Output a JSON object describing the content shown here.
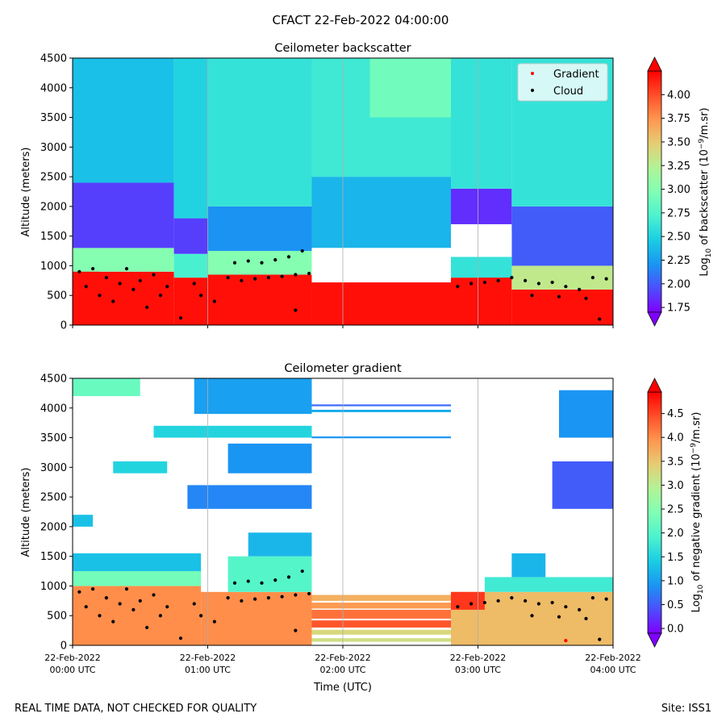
{
  "figure": {
    "suptitle": "CFACT 22-Feb-2022 04:00:00",
    "footer_left": "REAL TIME DATA, NOT CHECKED FOR QUALITY",
    "footer_right": "Site: ISS1",
    "xlabel": "Time (UTC)"
  },
  "colors": {
    "rainbow": [
      "#8000ff",
      "#4b4ffc",
      "#1996f3",
      "#1acee3",
      "#4df3ce",
      "#80ffb4",
      "#b2f396",
      "#e6cd73",
      "#ff964f",
      "#ff4f28",
      "#ff0000"
    ],
    "grid": "#b0b0b0",
    "gradient_marker": "#ff0000",
    "cloud_marker": "#000000"
  },
  "chart_data": [
    {
      "type": "heatmap",
      "title": "Ceilometer backscatter",
      "ylabel": "Altitude (meters)",
      "ylim": [
        0,
        4500
      ],
      "yticks": [
        0,
        500,
        1000,
        1500,
        2000,
        2500,
        3000,
        3500,
        4000,
        4500
      ],
      "xlim_hours": [
        0,
        4
      ],
      "xtick_hours": [
        0,
        1,
        2,
        3,
        4
      ],
      "xtick_labels": [
        [
          "22-Feb-2022",
          "00:00 UTC"
        ],
        [
          "22-Feb-2022",
          "01:00 UTC"
        ],
        [
          "22-Feb-2022",
          "02:00 UTC"
        ],
        [
          "22-Feb-2022",
          "03:00 UTC"
        ],
        [
          "22-Feb-2022",
          "04:00 UTC"
        ]
      ],
      "show_xtick_labels": false,
      "vertical_grid": true,
      "colorbar": {
        "label_prefix": "Log",
        "label_sub": "10",
        "label_mid": " of backscatter (10",
        "label_sup": "−9",
        "label_suffix": "/m.sr)",
        "range": [
          1.7,
          4.25
        ],
        "ticks": [
          "1.75",
          "2.00",
          "2.25",
          "2.50",
          "2.75",
          "3.00",
          "3.25",
          "3.50",
          "3.75",
          "4.00"
        ],
        "extend": "both"
      },
      "legend": {
        "location": "upper right",
        "entries": [
          "Gradient",
          "Cloud"
        ]
      },
      "regions": [
        {
          "t": [
            0.0,
            0.2
          ],
          "z": [
            0,
            1100
          ],
          "value": 4.2
        },
        {
          "t": [
            0.2,
            0.75
          ],
          "z": [
            0,
            900
          ],
          "value": 4.2
        },
        {
          "t": [
            0.0,
            0.75
          ],
          "z": [
            900,
            1300
          ],
          "value": 3.0
        },
        {
          "t": [
            0.0,
            0.75
          ],
          "z": [
            1300,
            2400
          ],
          "value": 1.9
        },
        {
          "t": [
            0.0,
            0.75
          ],
          "z": [
            2400,
            4500
          ],
          "value": 2.4
        },
        {
          "t": [
            0.75,
            1.0
          ],
          "z": [
            0,
            800
          ],
          "value": 4.2
        },
        {
          "t": [
            0.75,
            1.0
          ],
          "z": [
            800,
            1200
          ],
          "value": 2.7
        },
        {
          "t": [
            0.75,
            1.0
          ],
          "z": [
            1200,
            1800
          ],
          "value": 1.9
        },
        {
          "t": [
            0.75,
            1.0
          ],
          "z": [
            1800,
            4500
          ],
          "value": 2.5
        },
        {
          "t": [
            1.0,
            1.77
          ],
          "z": [
            0,
            850
          ],
          "value": 4.2
        },
        {
          "t": [
            1.0,
            1.77
          ],
          "z": [
            850,
            1250
          ],
          "value": 3.0
        },
        {
          "t": [
            1.0,
            1.77
          ],
          "z": [
            1250,
            2000
          ],
          "value": 2.2
        },
        {
          "t": [
            1.0,
            1.77
          ],
          "z": [
            2000,
            4500
          ],
          "value": 2.6
        },
        {
          "t": [
            1.77,
            2.8
          ],
          "z": [
            0,
            720
          ],
          "value": 4.2
        },
        {
          "t": [
            1.77,
            2.8
          ],
          "z": [
            1300,
            2500
          ],
          "value": 2.35
        },
        {
          "t": [
            1.77,
            2.8
          ],
          "z": [
            2500,
            4500
          ],
          "value": 2.65
        },
        {
          "t": [
            2.2,
            2.8
          ],
          "z": [
            3500,
            4500
          ],
          "value": 2.9
        },
        {
          "t": [
            2.8,
            3.0
          ],
          "z": [
            0,
            800
          ],
          "value": 4.2
        },
        {
          "t": [
            2.8,
            3.25
          ],
          "z": [
            1700,
            2300
          ],
          "value": 1.85
        },
        {
          "t": [
            3.0,
            3.25
          ],
          "z": [
            0,
            850
          ],
          "value": 4.2
        },
        {
          "t": [
            2.8,
            3.25
          ],
          "z": [
            2300,
            4500
          ],
          "value": 2.6
        },
        {
          "t": [
            3.25,
            4.0
          ],
          "z": [
            0,
            600
          ],
          "value": 4.2
        },
        {
          "t": [
            3.25,
            4.0
          ],
          "z": [
            600,
            1000
          ],
          "value": 3.3
        },
        {
          "t": [
            3.25,
            4.0
          ],
          "z": [
            1000,
            2000
          ],
          "value": 2.0
        },
        {
          "t": [
            3.25,
            4.0
          ],
          "z": [
            2000,
            4500
          ],
          "value": 2.6
        },
        {
          "t": [
            2.8,
            3.25
          ],
          "z": [
            800,
            1150
          ],
          "value": 2.6
        }
      ],
      "blank_regions": [
        {
          "t": [
            1.77,
            2.8
          ],
          "z": [
            720,
            1300
          ]
        },
        {
          "t": [
            2.8,
            3.25
          ],
          "z": [
            1150,
            1600
          ]
        }
      ],
      "cloud_points": [
        {
          "t": 0.05,
          "z": 900
        },
        {
          "t": 0.1,
          "z": 650
        },
        {
          "t": 0.15,
          "z": 950
        },
        {
          "t": 0.2,
          "z": 500
        },
        {
          "t": 0.25,
          "z": 800
        },
        {
          "t": 0.3,
          "z": 400
        },
        {
          "t": 0.35,
          "z": 700
        },
        {
          "t": 0.4,
          "z": 950
        },
        {
          "t": 0.45,
          "z": 600
        },
        {
          "t": 0.5,
          "z": 750
        },
        {
          "t": 0.55,
          "z": 300
        },
        {
          "t": 0.6,
          "z": 850
        },
        {
          "t": 0.65,
          "z": 500
        },
        {
          "t": 0.7,
          "z": 650
        },
        {
          "t": 0.8,
          "z": 120
        },
        {
          "t": 0.9,
          "z": 700
        },
        {
          "t": 0.95,
          "z": 500
        },
        {
          "t": 1.05,
          "z": 400
        },
        {
          "t": 1.15,
          "z": 800
        },
        {
          "t": 1.2,
          "z": 1050
        },
        {
          "t": 1.3,
          "z": 1080
        },
        {
          "t": 1.4,
          "z": 1050
        },
        {
          "t": 1.5,
          "z": 1100
        },
        {
          "t": 1.6,
          "z": 1150
        },
        {
          "t": 1.7,
          "z": 1250
        },
        {
          "t": 1.25,
          "z": 750
        },
        {
          "t": 1.35,
          "z": 780
        },
        {
          "t": 1.45,
          "z": 800
        },
        {
          "t": 1.55,
          "z": 820
        },
        {
          "t": 1.65,
          "z": 850
        },
        {
          "t": 1.75,
          "z": 870
        },
        {
          "t": 1.65,
          "z": 250
        },
        {
          "t": 2.85,
          "z": 650
        },
        {
          "t": 2.95,
          "z": 700
        },
        {
          "t": 3.05,
          "z": 720
        },
        {
          "t": 3.15,
          "z": 750
        },
        {
          "t": 3.25,
          "z": 800
        },
        {
          "t": 3.35,
          "z": 750
        },
        {
          "t": 3.45,
          "z": 700
        },
        {
          "t": 3.55,
          "z": 720
        },
        {
          "t": 3.65,
          "z": 650
        },
        {
          "t": 3.75,
          "z": 600
        },
        {
          "t": 3.85,
          "z": 800
        },
        {
          "t": 3.95,
          "z": 780
        },
        {
          "t": 3.4,
          "z": 500
        },
        {
          "t": 3.6,
          "z": 480
        },
        {
          "t": 3.8,
          "z": 450
        },
        {
          "t": 3.9,
          "z": 100
        }
      ]
    },
    {
      "type": "heatmap",
      "title": "Ceilometer gradient",
      "ylabel": "Altitude (meters)",
      "ylim": [
        0,
        4500
      ],
      "yticks": [
        0,
        500,
        1000,
        1500,
        2000,
        2500,
        3000,
        3500,
        4000,
        4500
      ],
      "xlim_hours": [
        0,
        4
      ],
      "xtick_hours": [
        0,
        1,
        2,
        3,
        4
      ],
      "xtick_labels": [
        [
          "22-Feb-2022",
          "00:00 UTC"
        ],
        [
          "22-Feb-2022",
          "01:00 UTC"
        ],
        [
          "22-Feb-2022",
          "02:00 UTC"
        ],
        [
          "22-Feb-2022",
          "03:00 UTC"
        ],
        [
          "22-Feb-2022",
          "04:00 UTC"
        ]
      ],
      "show_xtick_labels": true,
      "vertical_grid": true,
      "colorbar": {
        "label_prefix": "Log",
        "label_sub": "10",
        "label_mid": " of negative gradient (10",
        "label_sup": "−9",
        "label_suffix": "/m.sr)",
        "range": [
          -0.1,
          4.95
        ],
        "ticks": [
          "0.0",
          "0.5",
          "1.0",
          "1.5",
          "2.0",
          "2.5",
          "3.0",
          "3.5",
          "4.0",
          "4.5"
        ],
        "extend": "both"
      },
      "regions": [
        {
          "t": [
            0.0,
            0.95
          ],
          "z": [
            0,
            1000
          ],
          "value": 4.0
        },
        {
          "t": [
            0.0,
            0.95
          ],
          "z": [
            1000,
            1250
          ],
          "value": 2.3
        },
        {
          "t": [
            0.0,
            0.95
          ],
          "z": [
            1250,
            1550
          ],
          "value": 1.3
        },
        {
          "t": [
            0.95,
            1.77
          ],
          "z": [
            0,
            900
          ],
          "value": 4.0
        },
        {
          "t": [
            1.15,
            1.77
          ],
          "z": [
            900,
            1500
          ],
          "value": 2.0
        },
        {
          "t": [
            1.3,
            1.77
          ],
          "z": [
            1500,
            1900
          ],
          "value": 1.2
        },
        {
          "t": [
            0.85,
            1.77
          ],
          "z": [
            2300,
            2700
          ],
          "value": 0.8
        },
        {
          "t": [
            1.15,
            1.77
          ],
          "z": [
            2900,
            3400
          ],
          "value": 0.9
        },
        {
          "t": [
            0.6,
            1.77
          ],
          "z": [
            3500,
            3700
          ],
          "value": 1.5
        },
        {
          "t": [
            0.9,
            1.77
          ],
          "z": [
            3900,
            4500
          ],
          "value": 1.0
        },
        {
          "t": [
            0.0,
            0.5
          ],
          "z": [
            4200,
            4500
          ],
          "value": 2.2
        },
        {
          "t": [
            0.0,
            0.15
          ],
          "z": [
            2000,
            2200
          ],
          "value": 1.3
        },
        {
          "t": [
            0.3,
            0.7
          ],
          "z": [
            2900,
            3100
          ],
          "value": 1.5
        },
        {
          "t": [
            2.8,
            4.0
          ],
          "z": [
            0,
            900
          ],
          "value": 3.6
        },
        {
          "t": [
            2.8,
            3.05
          ],
          "z": [
            600,
            900
          ],
          "value": 4.6
        },
        {
          "t": [
            3.05,
            4.0
          ],
          "z": [
            900,
            1150
          ],
          "value": 1.8
        },
        {
          "t": [
            3.25,
            3.5
          ],
          "z": [
            1150,
            1550
          ],
          "value": 1.2
        },
        {
          "t": [
            3.55,
            4.0
          ],
          "z": [
            2300,
            3100
          ],
          "value": 0.5
        },
        {
          "t": [
            3.6,
            4.0
          ],
          "z": [
            3500,
            4300
          ],
          "value": 0.9
        }
      ],
      "stripes": [
        {
          "t": [
            1.77,
            2.8
          ],
          "z": [
            750,
            850
          ],
          "value": 3.7
        },
        {
          "t": [
            1.77,
            2.8
          ],
          "z": [
            450,
            600
          ],
          "value": 4.2
        },
        {
          "t": [
            1.77,
            2.8
          ],
          "z": [
            300,
            420
          ],
          "value": 4.4
        },
        {
          "t": [
            1.77,
            2.8
          ],
          "z": [
            180,
            260
          ],
          "value": 3.3
        },
        {
          "t": [
            1.77,
            2.8
          ],
          "z": [
            60,
            120
          ],
          "value": 3.2
        },
        {
          "t": [
            1.77,
            2.8
          ],
          "z": [
            620,
            720
          ],
          "value": 3.9
        },
        {
          "t": [
            1.77,
            2.8
          ],
          "z": [
            3930,
            3970
          ],
          "value": 1.1
        },
        {
          "t": [
            1.77,
            2.8
          ],
          "z": [
            4030,
            4060
          ],
          "value": 0.6
        },
        {
          "t": [
            1.77,
            2.8
          ],
          "z": [
            3490,
            3520
          ],
          "value": 0.9
        }
      ],
      "cloud_points": [
        {
          "t": 0.05,
          "z": 900
        },
        {
          "t": 0.1,
          "z": 650
        },
        {
          "t": 0.15,
          "z": 950
        },
        {
          "t": 0.2,
          "z": 500
        },
        {
          "t": 0.25,
          "z": 800
        },
        {
          "t": 0.3,
          "z": 400
        },
        {
          "t": 0.35,
          "z": 700
        },
        {
          "t": 0.4,
          "z": 950
        },
        {
          "t": 0.45,
          "z": 600
        },
        {
          "t": 0.5,
          "z": 750
        },
        {
          "t": 0.55,
          "z": 300
        },
        {
          "t": 0.6,
          "z": 850
        },
        {
          "t": 0.65,
          "z": 500
        },
        {
          "t": 0.7,
          "z": 650
        },
        {
          "t": 0.8,
          "z": 120
        },
        {
          "t": 0.9,
          "z": 700
        },
        {
          "t": 0.95,
          "z": 500
        },
        {
          "t": 1.05,
          "z": 400
        },
        {
          "t": 1.15,
          "z": 800
        },
        {
          "t": 1.2,
          "z": 1050
        },
        {
          "t": 1.3,
          "z": 1080
        },
        {
          "t": 1.4,
          "z": 1050
        },
        {
          "t": 1.5,
          "z": 1100
        },
        {
          "t": 1.6,
          "z": 1150
        },
        {
          "t": 1.7,
          "z": 1250
        },
        {
          "t": 1.25,
          "z": 750
        },
        {
          "t": 1.35,
          "z": 780
        },
        {
          "t": 1.45,
          "z": 800
        },
        {
          "t": 1.55,
          "z": 820
        },
        {
          "t": 1.65,
          "z": 850
        },
        {
          "t": 1.75,
          "z": 870
        },
        {
          "t": 1.65,
          "z": 250
        },
        {
          "t": 2.85,
          "z": 650
        },
        {
          "t": 2.95,
          "z": 700
        },
        {
          "t": 3.05,
          "z": 720
        },
        {
          "t": 3.15,
          "z": 750
        },
        {
          "t": 3.25,
          "z": 800
        },
        {
          "t": 3.35,
          "z": 750
        },
        {
          "t": 3.45,
          "z": 700
        },
        {
          "t": 3.55,
          "z": 720
        },
        {
          "t": 3.65,
          "z": 650
        },
        {
          "t": 3.75,
          "z": 600
        },
        {
          "t": 3.85,
          "z": 800
        },
        {
          "t": 3.95,
          "z": 780
        },
        {
          "t": 3.4,
          "z": 500
        },
        {
          "t": 3.6,
          "z": 480
        },
        {
          "t": 3.8,
          "z": 450
        },
        {
          "t": 3.9,
          "z": 100
        }
      ],
      "gradient_points": [
        {
          "t": 3.65,
          "z": 80
        }
      ]
    }
  ]
}
